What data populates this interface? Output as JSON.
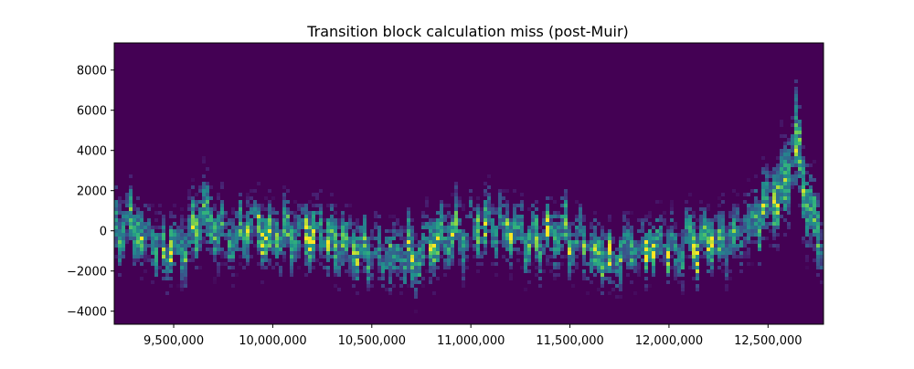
{
  "chart_data": {
    "type": "heatmap",
    "title": "Transition block calculation miss (post-Muir)",
    "xlabel": "",
    "ylabel": "",
    "xlim": [
      9200000,
      12780000
    ],
    "ylim": [
      -4650,
      9350
    ],
    "x_ticks": [
      {
        "value": 9500000,
        "label": "9,500,000"
      },
      {
        "value": 10000000,
        "label": "10,000,000"
      },
      {
        "value": 10500000,
        "label": "10,500,000"
      },
      {
        "value": 11000000,
        "label": "11,000,000"
      },
      {
        "value": 11500000,
        "label": "11,500,000"
      },
      {
        "value": 12000000,
        "label": "12,000,000"
      },
      {
        "value": 12500000,
        "label": "12,500,000"
      }
    ],
    "y_ticks": [
      {
        "value": -4000,
        "label": "−4000"
      },
      {
        "value": -2000,
        "label": "−2000"
      },
      {
        "value": 0,
        "label": "0"
      },
      {
        "value": 2000,
        "label": "2000"
      },
      {
        "value": 4000,
        "label": "4000"
      },
      {
        "value": 6000,
        "label": "6000"
      },
      {
        "value": 8000,
        "label": "8000"
      }
    ],
    "grid": false,
    "colormap": "viridis",
    "background_color": "#440154",
    "density_trend": [
      {
        "x": 9200000,
        "center": 0,
        "spread": 1500
      },
      {
        "x": 9300000,
        "center": 300,
        "spread": 1300
      },
      {
        "x": 9400000,
        "center": -700,
        "spread": 1300
      },
      {
        "x": 9500000,
        "center": -1100,
        "spread": 1200
      },
      {
        "x": 9600000,
        "center": -200,
        "spread": 1400
      },
      {
        "x": 9650000,
        "center": 900,
        "spread": 1500
      },
      {
        "x": 9800000,
        "center": -300,
        "spread": 1300
      },
      {
        "x": 9900000,
        "center": 200,
        "spread": 1300
      },
      {
        "x": 10000000,
        "center": -400,
        "spread": 1300
      },
      {
        "x": 10200000,
        "center": 0,
        "spread": 1300
      },
      {
        "x": 10350000,
        "center": -700,
        "spread": 1300
      },
      {
        "x": 10500000,
        "center": -1300,
        "spread": 1300
      },
      {
        "x": 10700000,
        "center": -1200,
        "spread": 1400
      },
      {
        "x": 10850000,
        "center": -300,
        "spread": 1300
      },
      {
        "x": 11000000,
        "center": 100,
        "spread": 1300
      },
      {
        "x": 11100000,
        "center": 300,
        "spread": 1300
      },
      {
        "x": 11300000,
        "center": -400,
        "spread": 1200
      },
      {
        "x": 11450000,
        "center": -200,
        "spread": 1300
      },
      {
        "x": 11600000,
        "center": -700,
        "spread": 1200
      },
      {
        "x": 11700000,
        "center": -1500,
        "spread": 1200
      },
      {
        "x": 11850000,
        "center": -700,
        "spread": 1200
      },
      {
        "x": 12000000,
        "center": -800,
        "spread": 1200
      },
      {
        "x": 12150000,
        "center": -600,
        "spread": 1200
      },
      {
        "x": 12300000,
        "center": -500,
        "spread": 1200
      },
      {
        "x": 12450000,
        "center": 700,
        "spread": 1400
      },
      {
        "x": 12550000,
        "center": 1500,
        "spread": 1600
      },
      {
        "x": 12650000,
        "center": 4500,
        "spread": 2200
      },
      {
        "x": 12700000,
        "center": 1200,
        "spread": 1800
      },
      {
        "x": 12780000,
        "center": -1000,
        "spread": 1400
      }
    ]
  }
}
